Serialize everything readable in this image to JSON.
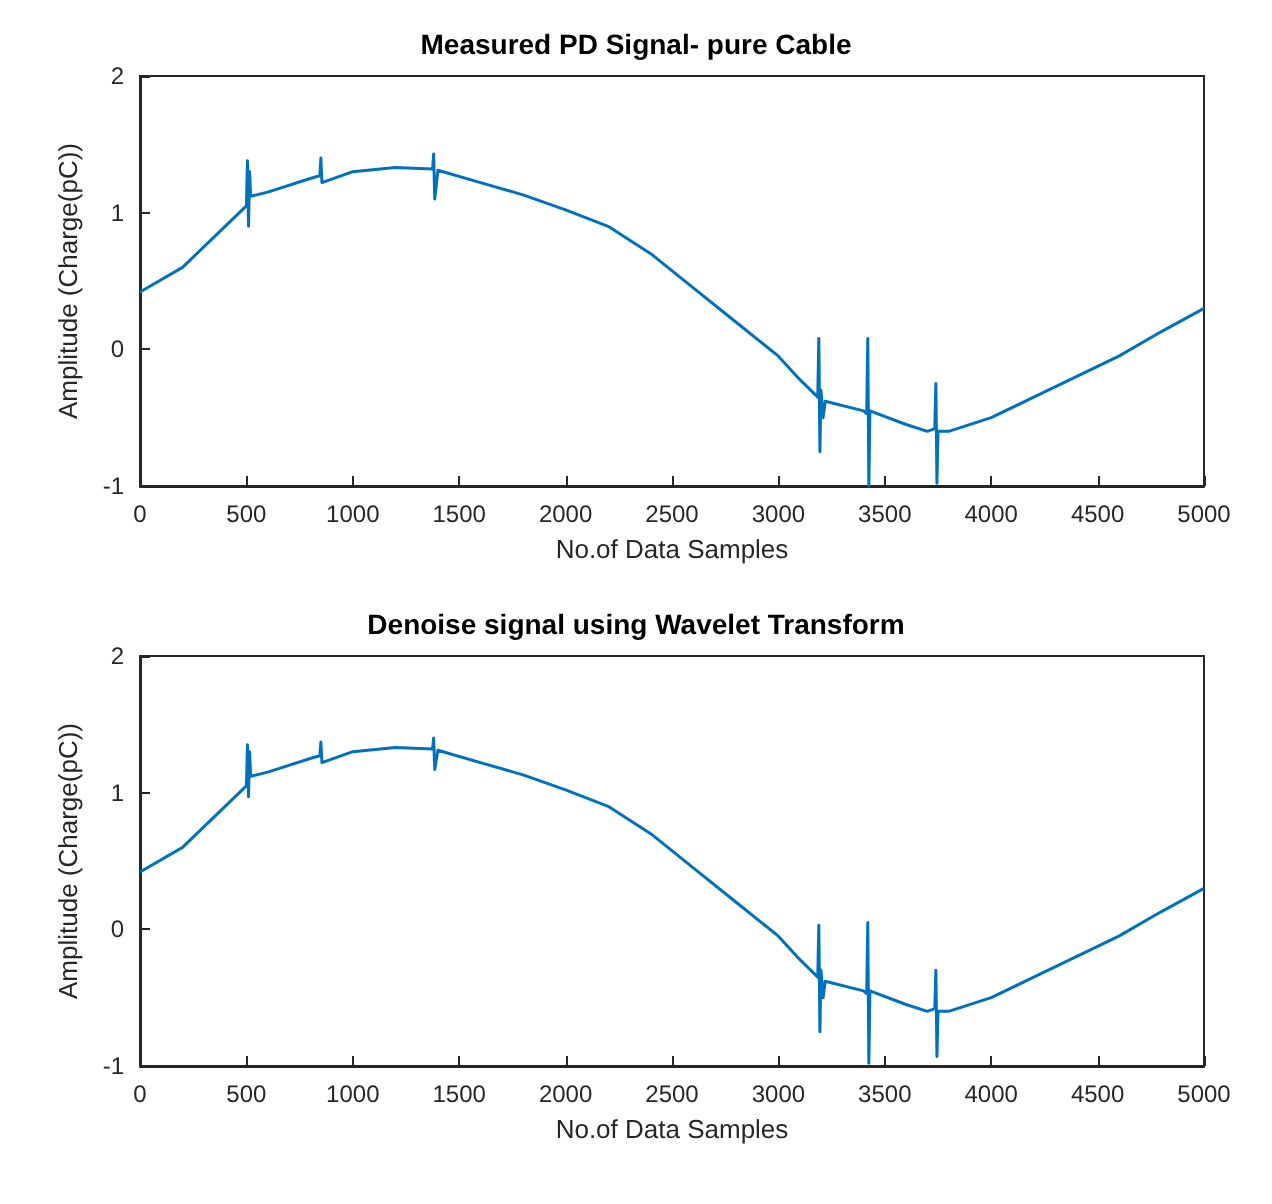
{
  "chart_data": [
    {
      "type": "line",
      "title": "Measured PD Signal- pure Cable",
      "xlabel": "No.of Data Samples",
      "ylabel": "Amplitude (Charge(pC))",
      "xlim": [
        0,
        5000
      ],
      "xticks": [
        0,
        500,
        1000,
        1500,
        2000,
        2500,
        3000,
        3500,
        4000,
        4500,
        5000
      ],
      "ylim": [
        -1,
        2
      ],
      "yticks": [
        -1,
        0,
        1,
        2
      ],
      "grid": false,
      "marker": "none",
      "line_style": "solid",
      "series": [
        {
          "color": "#0072bd",
          "x": [
            0,
            200,
            400,
            500,
            505,
            510,
            515,
            520,
            600,
            800,
            845,
            850,
            855,
            1000,
            1200,
            1375,
            1380,
            1385,
            1400,
            1600,
            1800,
            2000,
            2200,
            2400,
            2600,
            2800,
            3000,
            3100,
            3185,
            3190,
            3195,
            3200,
            3210,
            3220,
            3400,
            3415,
            3420,
            3425,
            3430,
            3600,
            3700,
            3735,
            3740,
            3745,
            3750,
            3800,
            4000,
            4200,
            4400,
            4600,
            4800,
            5000
          ],
          "values": [
            0.42,
            0.6,
            0.9,
            1.05,
            1.38,
            0.9,
            1.3,
            1.12,
            1.15,
            1.25,
            1.27,
            1.4,
            1.22,
            1.3,
            1.33,
            1.32,
            1.43,
            1.1,
            1.31,
            1.22,
            1.13,
            1.02,
            0.9,
            0.7,
            0.45,
            0.2,
            -0.05,
            -0.22,
            -0.35,
            0.08,
            -0.75,
            -0.3,
            -0.5,
            -0.38,
            -0.45,
            -0.47,
            0.08,
            -1.0,
            -0.45,
            -0.55,
            -0.6,
            -0.58,
            -0.25,
            -0.98,
            -0.6,
            -0.6,
            -0.5,
            -0.35,
            -0.2,
            -0.05,
            0.13,
            0.3
          ]
        }
      ]
    },
    {
      "type": "line",
      "title": "Denoise signal using Wavelet Transform",
      "xlabel": "No.of Data Samples",
      "ylabel": "Amplitude (Charge(pC))",
      "xlim": [
        0,
        5000
      ],
      "xticks": [
        0,
        500,
        1000,
        1500,
        2000,
        2500,
        3000,
        3500,
        4000,
        4500,
        5000
      ],
      "ylim": [
        -1,
        2
      ],
      "yticks": [
        -1,
        0,
        1,
        2
      ],
      "grid": false,
      "marker": "none",
      "line_style": "solid",
      "series": [
        {
          "color": "#0072bd",
          "x": [
            0,
            200,
            400,
            500,
            505,
            510,
            515,
            520,
            600,
            800,
            845,
            850,
            855,
            1000,
            1200,
            1375,
            1380,
            1385,
            1400,
            1600,
            1800,
            2000,
            2200,
            2400,
            2600,
            2800,
            3000,
            3100,
            3185,
            3190,
            3195,
            3200,
            3210,
            3220,
            3400,
            3415,
            3420,
            3425,
            3430,
            3600,
            3700,
            3735,
            3740,
            3745,
            3750,
            3800,
            4000,
            4200,
            4400,
            4600,
            4800,
            5000
          ],
          "values": [
            0.42,
            0.6,
            0.9,
            1.05,
            1.35,
            0.97,
            1.3,
            1.12,
            1.15,
            1.25,
            1.27,
            1.37,
            1.22,
            1.3,
            1.33,
            1.32,
            1.4,
            1.17,
            1.31,
            1.22,
            1.13,
            1.02,
            0.9,
            0.7,
            0.45,
            0.2,
            -0.05,
            -0.22,
            -0.35,
            0.03,
            -0.75,
            -0.3,
            -0.5,
            -0.38,
            -0.45,
            -0.47,
            0.05,
            -0.98,
            -0.45,
            -0.55,
            -0.6,
            -0.58,
            -0.3,
            -0.93,
            -0.6,
            -0.6,
            -0.5,
            -0.35,
            -0.2,
            -0.05,
            0.13,
            0.3
          ]
        }
      ]
    }
  ]
}
